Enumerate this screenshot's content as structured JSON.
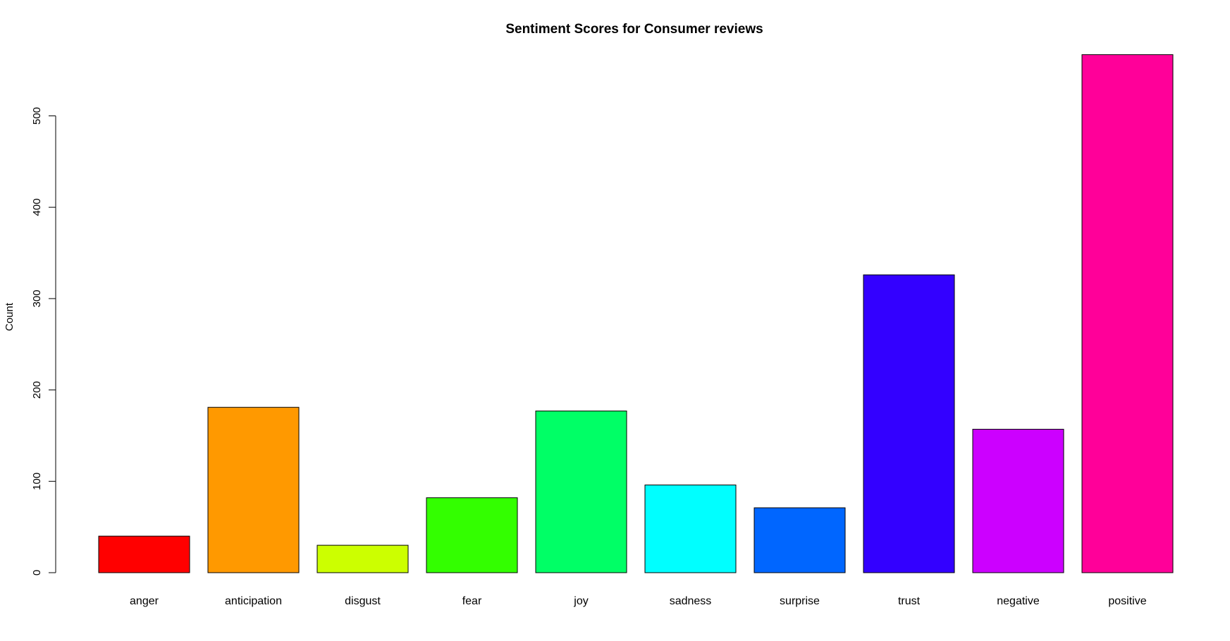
{
  "chart_data": {
    "type": "bar",
    "title": "Sentiment Scores for Consumer reviews",
    "xlabel": "",
    "ylabel": "Count",
    "ylim": [
      0,
      570
    ],
    "yticks": [
      0,
      100,
      200,
      300,
      400,
      500
    ],
    "grid": false,
    "categories": [
      "anger",
      "anticipation",
      "disgust",
      "fear",
      "joy",
      "sadness",
      "surprise",
      "trust",
      "negative",
      "positive"
    ],
    "values": [
      40,
      181,
      30,
      82,
      177,
      96,
      71,
      326,
      157,
      567
    ],
    "colors": [
      "#FF0000",
      "#FF9900",
      "#CCFF00",
      "#33FF00",
      "#00FF66",
      "#00FFFF",
      "#0066FF",
      "#3300FF",
      "#CC00FF",
      "#FF0099"
    ]
  }
}
